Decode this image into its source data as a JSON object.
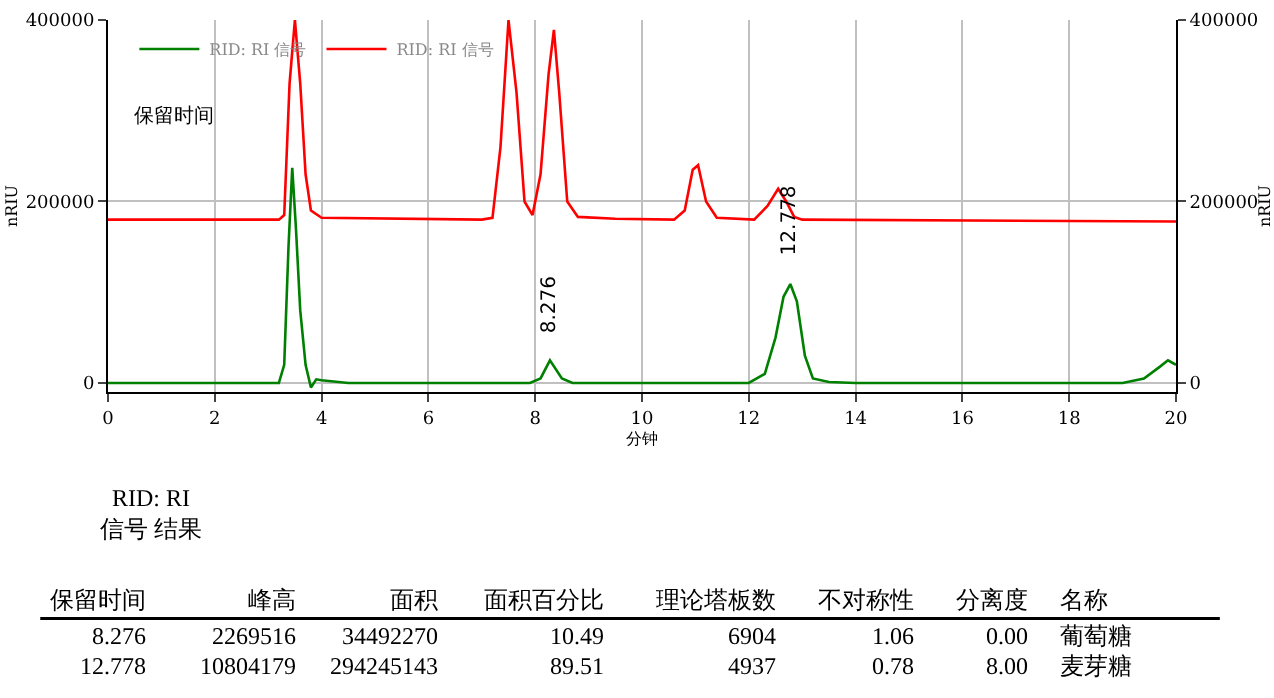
{
  "chart_data": {
    "type": "line",
    "xlabel": "分钟",
    "ylabel": "nRIU",
    "y2label": "nRIU",
    "xlim": [
      0,
      20
    ],
    "xticks": [
      0,
      2,
      4,
      6,
      8,
      10,
      12,
      14,
      16,
      18,
      20
    ],
    "ylim": [
      -10000,
      400000
    ],
    "yticks": [
      0,
      200000,
      400000
    ],
    "y2lim": [
      -10000,
      400000
    ],
    "y2ticks": [
      0,
      200000,
      400000
    ],
    "grid": true,
    "legend": "top left",
    "marker": "none",
    "line_style": "solid",
    "series": [
      {
        "name": "RID: RI 信号",
        "color": "#008000",
        "x": [
          0,
          3.2,
          3.3,
          3.38,
          3.45,
          3.52,
          3.6,
          3.7,
          3.8,
          3.9,
          4.0,
          4.5,
          7.9,
          8.1,
          8.276,
          8.5,
          8.7,
          12.0,
          12.3,
          12.5,
          12.65,
          12.778,
          12.9,
          13.05,
          13.2,
          13.5,
          14,
          19,
          19.4,
          19.7,
          19.85,
          20
        ],
        "values": [
          0,
          0,
          20000,
          150000,
          237000,
          170000,
          80000,
          20000,
          -5000,
          4000,
          3000,
          0,
          0,
          5000,
          25000,
          5000,
          0,
          0,
          10000,
          50000,
          95000,
          109000,
          90000,
          30000,
          5000,
          1000,
          0,
          0,
          5000,
          18000,
          25000,
          20000
        ]
      },
      {
        "name": "RID: RI 信号",
        "color": "#ff0000",
        "x": [
          0,
          3.2,
          3.3,
          3.4,
          3.5,
          3.6,
          3.7,
          3.8,
          4.0,
          7.0,
          7.2,
          7.35,
          7.5,
          7.65,
          7.8,
          7.95,
          8.1,
          8.25,
          8.35,
          8.45,
          8.6,
          8.8,
          9.5,
          10.6,
          10.8,
          10.95,
          11.05,
          11.2,
          11.4,
          12.1,
          12.35,
          12.55,
          12.7,
          12.85,
          13.0,
          20
        ],
        "values": [
          180000,
          180000,
          185000,
          330000,
          400000,
          330000,
          230000,
          190000,
          182000,
          180000,
          182000,
          260000,
          400000,
          320000,
          200000,
          185000,
          230000,
          340000,
          389000,
          320000,
          200000,
          183000,
          181000,
          180000,
          190000,
          235000,
          240000,
          200000,
          182000,
          180000,
          195000,
          214000,
          200000,
          183000,
          180000,
          178000
        ]
      }
    ],
    "annotations": [
      "保留时间",
      {
        "text": "8.276",
        "x": 8.276,
        "y": 25000
      },
      {
        "text": "12.778",
        "x": 12.778,
        "y": 109000
      },
      "RID: RI\n信号 结果",
      "保留时间",
      "峰高",
      "面积",
      "面积百分比",
      "理论塔板数",
      "不对称性",
      "分离度",
      "名称",
      "8.276",
      "2269516",
      "34492270",
      "10.49",
      "6904",
      "1.06",
      "0.00",
      "葡萄糖",
      "12.778",
      "10804179",
      "294245143",
      "89.51",
      "4937",
      "0.78",
      "8.00",
      "麦芽糖"
    ]
  }
}
